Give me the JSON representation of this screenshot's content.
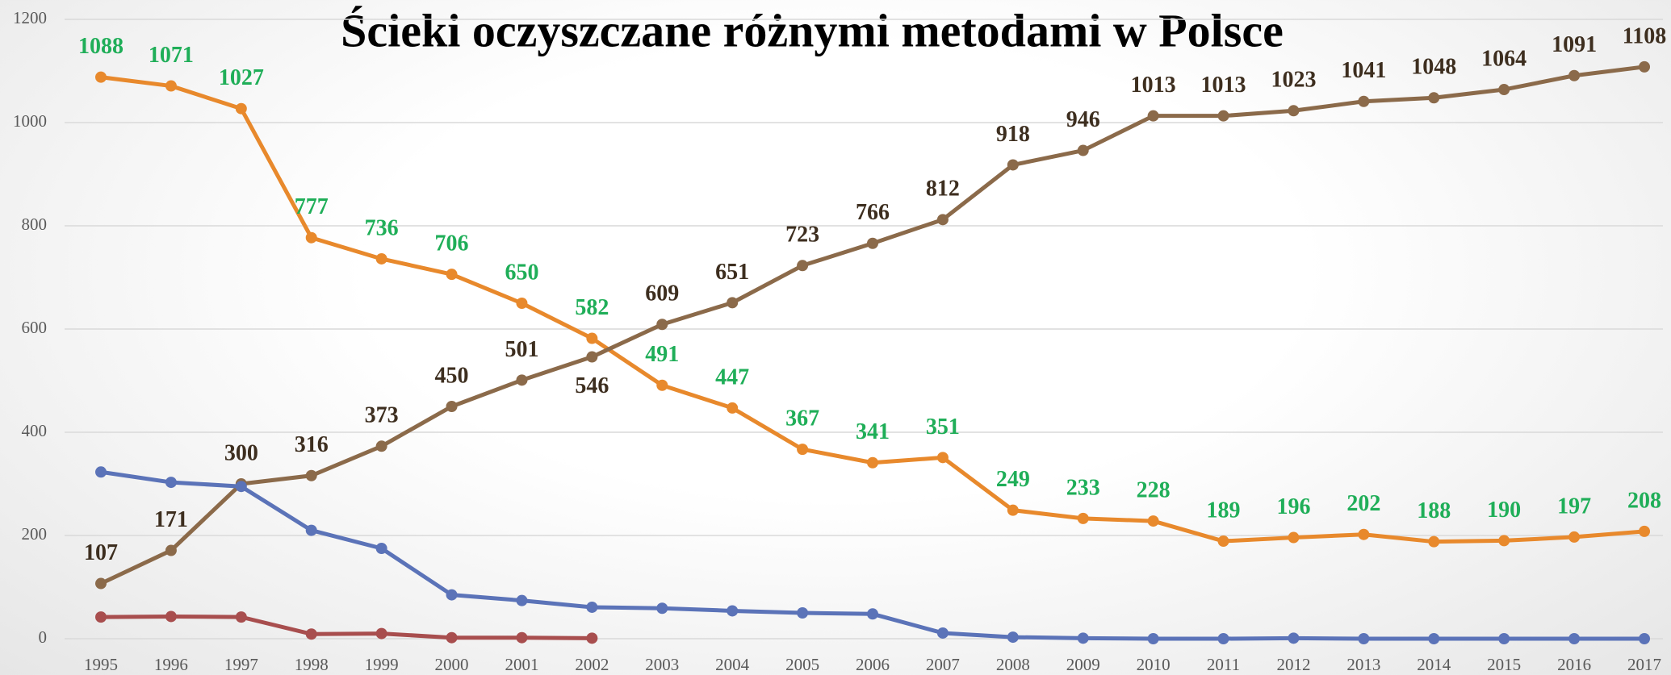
{
  "chart_data": {
    "type": "line",
    "title": "Ścieki oczyszczane różnymi metodami w Polsce",
    "categories": [
      "1995",
      "1996",
      "1997",
      "1998",
      "1999",
      "2000",
      "2001",
      "2002",
      "2003",
      "2004",
      "2005",
      "2006",
      "2007",
      "2008",
      "2009",
      "2010",
      "2011",
      "2012",
      "2013",
      "2014",
      "2015",
      "2016",
      "2017"
    ],
    "series": [
      {
        "color": "#e8892c",
        "label_color": "#1fae58",
        "data_labels": true,
        "values": [
          1088,
          1071,
          1027,
          777,
          736,
          706,
          650,
          582,
          491,
          447,
          367,
          341,
          351,
          249,
          233,
          228,
          189,
          196,
          202,
          188,
          190,
          197,
          208
        ]
      },
      {
        "color": "#8b6a4a",
        "label_color": "#3d2e1f",
        "data_labels": true,
        "values": [
          107,
          171,
          300,
          316,
          373,
          450,
          501,
          546,
          609,
          651,
          723,
          766,
          812,
          918,
          946,
          1013,
          1013,
          1023,
          1041,
          1048,
          1064,
          1091,
          1108
        ]
      },
      {
        "color": "#5b73b8",
        "data_labels": false,
        "values": [
          323,
          303,
          295,
          210,
          175,
          85,
          74,
          61,
          59,
          54,
          50,
          48,
          11,
          3,
          1,
          0,
          0,
          1,
          0,
          0,
          0,
          0,
          0
        ]
      },
      {
        "color": "#a84e4e",
        "data_labels": false,
        "values": [
          42,
          43,
          42,
          9,
          10,
          2,
          2,
          1,
          null,
          null,
          null,
          null,
          null,
          null,
          null,
          null,
          null,
          null,
          null,
          null,
          null,
          null,
          null
        ]
      }
    ],
    "ylim": [
      0,
      1200
    ],
    "yticks": [
      0,
      200,
      400,
      600,
      800,
      1000,
      1200
    ],
    "grid": true
  }
}
